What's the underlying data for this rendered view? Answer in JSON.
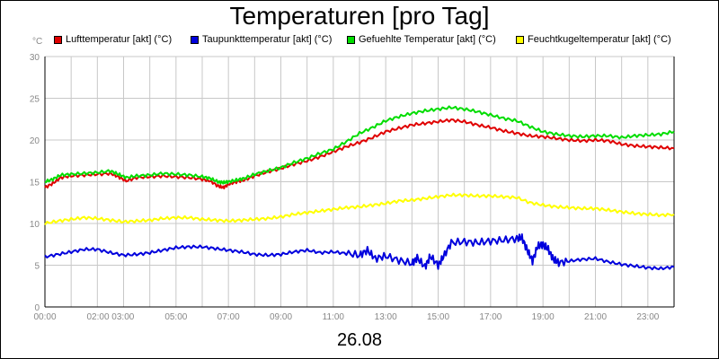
{
  "title": "Temperaturen [pro Tag]",
  "date_label": "26.08",
  "chart_data": {
    "type": "line",
    "title": "Temperaturen [pro Tag]",
    "xlabel": "26.08",
    "ylabel": "°C",
    "y_unit": "°C",
    "xlim": [
      0,
      24
    ],
    "ylim": [
      0,
      30
    ],
    "grid": true,
    "legend_position": "top",
    "x_ticks": [
      {
        "label": "00:00",
        "x": 0
      },
      {
        "label": "02:00 03:00",
        "x": 2.5
      },
      {
        "label": "05:00",
        "x": 5
      },
      {
        "label": "07:00",
        "x": 7
      },
      {
        "label": "09:00",
        "x": 9
      },
      {
        "label": "11:00",
        "x": 11
      },
      {
        "label": "13:00",
        "x": 13
      },
      {
        "label": "15:00",
        "x": 15
      },
      {
        "label": "17:00",
        "x": 17
      },
      {
        "label": "19:00",
        "x": 19
      },
      {
        "label": "21:00",
        "x": 21
      },
      {
        "label": "23:00",
        "x": 23
      }
    ],
    "y_ticks": [
      0,
      5,
      10,
      15,
      20,
      25,
      30
    ],
    "series": [
      {
        "name": "Lufttemperatur [akt] (°C)",
        "color": "#e00000",
        "points": [
          [
            0,
            14.3
          ],
          [
            0.3,
            14.8
          ],
          [
            0.6,
            15.5
          ],
          [
            1,
            15.7
          ],
          [
            1.5,
            15.8
          ],
          [
            2,
            15.9
          ],
          [
            2.5,
            16.0
          ],
          [
            2.8,
            15.6
          ],
          [
            3.1,
            15.1
          ],
          [
            3.5,
            15.5
          ],
          [
            4,
            15.6
          ],
          [
            4.5,
            15.7
          ],
          [
            5,
            15.6
          ],
          [
            5.5,
            15.5
          ],
          [
            6,
            15.3
          ],
          [
            6.3,
            15.1
          ],
          [
            6.6,
            14.5
          ],
          [
            6.8,
            14.3
          ],
          [
            7,
            14.7
          ],
          [
            7.3,
            15.0
          ],
          [
            7.6,
            15.2
          ],
          [
            8,
            15.7
          ],
          [
            8.5,
            16.2
          ],
          [
            9,
            16.6
          ],
          [
            9.5,
            17.1
          ],
          [
            10,
            17.5
          ],
          [
            10.5,
            18.0
          ],
          [
            11,
            18.6
          ],
          [
            11.5,
            19.2
          ],
          [
            12,
            19.7
          ],
          [
            12.5,
            20.3
          ],
          [
            13,
            21.0
          ],
          [
            13.5,
            21.4
          ],
          [
            14,
            21.8
          ],
          [
            14.5,
            22.0
          ],
          [
            15,
            22.2
          ],
          [
            15.5,
            22.4
          ],
          [
            16,
            22.2
          ],
          [
            16.5,
            21.8
          ],
          [
            17,
            21.5
          ],
          [
            17.5,
            21.1
          ],
          [
            18,
            20.8
          ],
          [
            18.5,
            20.5
          ],
          [
            19,
            20.4
          ],
          [
            19.5,
            20.2
          ],
          [
            20,
            20.0
          ],
          [
            20.5,
            19.9
          ],
          [
            21,
            20.0
          ],
          [
            21.5,
            19.9
          ],
          [
            22,
            19.5
          ],
          [
            22.5,
            19.3
          ],
          [
            23,
            19.2
          ],
          [
            23.5,
            19.1
          ],
          [
            24,
            19.0
          ]
        ]
      },
      {
        "name": "Taupunkttemperatur [akt] (°C)",
        "color": "#0000dd",
        "points": [
          [
            0,
            6.0
          ],
          [
            0.5,
            6.3
          ],
          [
            1,
            6.6
          ],
          [
            1.5,
            6.9
          ],
          [
            2,
            6.9
          ],
          [
            2.5,
            6.5
          ],
          [
            3,
            6.2
          ],
          [
            3.5,
            6.3
          ],
          [
            4,
            6.5
          ],
          [
            4.5,
            6.8
          ],
          [
            5,
            7.1
          ],
          [
            5.5,
            7.2
          ],
          [
            6,
            7.2
          ],
          [
            6.5,
            7.0
          ],
          [
            7,
            6.8
          ],
          [
            7.5,
            6.6
          ],
          [
            8,
            6.3
          ],
          [
            8.5,
            6.2
          ],
          [
            9,
            6.3
          ],
          [
            9.5,
            6.6
          ],
          [
            10,
            6.8
          ],
          [
            10.5,
            6.5
          ],
          [
            11,
            6.6
          ],
          [
            11.5,
            6.4
          ],
          [
            12,
            6.2
          ],
          [
            12.3,
            6.8
          ],
          [
            12.6,
            5.8
          ],
          [
            13,
            6.1
          ],
          [
            13.5,
            5.6
          ],
          [
            14,
            5.2
          ],
          [
            14.2,
            5.9
          ],
          [
            14.5,
            4.8
          ],
          [
            14.7,
            6.1
          ],
          [
            15,
            5.0
          ],
          [
            15.2,
            6.0
          ],
          [
            15.5,
            7.7
          ],
          [
            16,
            7.8
          ],
          [
            16.5,
            7.7
          ],
          [
            17,
            7.9
          ],
          [
            17.5,
            8.0
          ],
          [
            18,
            8.2
          ],
          [
            18.2,
            8.3
          ],
          [
            18.4,
            6.8
          ],
          [
            18.6,
            5.5
          ],
          [
            18.8,
            7.3
          ],
          [
            19,
            7.5
          ],
          [
            19.2,
            6.9
          ],
          [
            19.4,
            5.7
          ],
          [
            19.6,
            5.3
          ],
          [
            20,
            5.5
          ],
          [
            20.5,
            5.7
          ],
          [
            21,
            5.8
          ],
          [
            21.5,
            5.4
          ],
          [
            22,
            5.1
          ],
          [
            22.5,
            4.9
          ],
          [
            23,
            4.7
          ],
          [
            23.5,
            4.6
          ],
          [
            24,
            4.8
          ]
        ]
      },
      {
        "name": "Gefuehlte Temperatur [akt] (°C)",
        "color": "#00dd00",
        "points": [
          [
            0,
            15.0
          ],
          [
            0.3,
            15.3
          ],
          [
            0.6,
            15.8
          ],
          [
            1,
            15.9
          ],
          [
            1.5,
            16.0
          ],
          [
            2,
            16.1
          ],
          [
            2.5,
            16.3
          ],
          [
            2.8,
            15.9
          ],
          [
            3.1,
            15.5
          ],
          [
            3.5,
            15.7
          ],
          [
            4,
            15.8
          ],
          [
            4.5,
            16.0
          ],
          [
            5,
            15.9
          ],
          [
            5.5,
            15.8
          ],
          [
            6,
            15.6
          ],
          [
            6.3,
            15.4
          ],
          [
            6.6,
            15.0
          ],
          [
            6.8,
            14.9
          ],
          [
            7,
            15.0
          ],
          [
            7.3,
            15.2
          ],
          [
            7.6,
            15.4
          ],
          [
            8,
            15.9
          ],
          [
            8.5,
            16.3
          ],
          [
            9,
            16.7
          ],
          [
            9.5,
            17.3
          ],
          [
            10,
            17.8
          ],
          [
            10.5,
            18.4
          ],
          [
            11,
            18.9
          ],
          [
            11.5,
            19.8
          ],
          [
            12,
            20.8
          ],
          [
            12.5,
            21.5
          ],
          [
            13,
            22.3
          ],
          [
            13.5,
            22.8
          ],
          [
            14,
            23.2
          ],
          [
            14.5,
            23.5
          ],
          [
            15,
            23.7
          ],
          [
            15.5,
            23.9
          ],
          [
            16,
            23.7
          ],
          [
            16.5,
            23.4
          ],
          [
            17,
            23.0
          ],
          [
            17.5,
            22.6
          ],
          [
            18,
            22.3
          ],
          [
            18.5,
            21.6
          ],
          [
            19,
            21.0
          ],
          [
            19.5,
            20.7
          ],
          [
            20,
            20.5
          ],
          [
            20.5,
            20.4
          ],
          [
            21,
            20.5
          ],
          [
            21.5,
            20.5
          ],
          [
            22,
            20.3
          ],
          [
            22.5,
            20.5
          ],
          [
            23,
            20.6
          ],
          [
            23.5,
            20.7
          ],
          [
            24,
            21.0
          ]
        ]
      },
      {
        "name": "Feuchtkugeltemperatur [akt] (°C)",
        "color": "#ffff00",
        "points": [
          [
            0,
            10.0
          ],
          [
            0.5,
            10.3
          ],
          [
            1,
            10.5
          ],
          [
            1.5,
            10.7
          ],
          [
            2,
            10.6
          ],
          [
            2.5,
            10.4
          ],
          [
            3,
            10.2
          ],
          [
            3.5,
            10.3
          ],
          [
            4,
            10.4
          ],
          [
            4.5,
            10.6
          ],
          [
            5,
            10.7
          ],
          [
            5.5,
            10.7
          ],
          [
            6,
            10.5
          ],
          [
            6.5,
            10.4
          ],
          [
            7,
            10.3
          ],
          [
            7.5,
            10.4
          ],
          [
            8,
            10.5
          ],
          [
            8.5,
            10.6
          ],
          [
            9,
            10.8
          ],
          [
            9.5,
            11.1
          ],
          [
            10,
            11.3
          ],
          [
            10.5,
            11.5
          ],
          [
            11,
            11.7
          ],
          [
            11.5,
            11.9
          ],
          [
            12,
            12.0
          ],
          [
            12.5,
            12.2
          ],
          [
            13,
            12.4
          ],
          [
            13.5,
            12.7
          ],
          [
            14,
            12.8
          ],
          [
            14.5,
            13.0
          ],
          [
            15,
            13.2
          ],
          [
            15.5,
            13.4
          ],
          [
            16,
            13.4
          ],
          [
            16.5,
            13.3
          ],
          [
            17,
            13.3
          ],
          [
            17.5,
            13.2
          ],
          [
            18,
            13.1
          ],
          [
            18.5,
            12.5
          ],
          [
            19,
            12.2
          ],
          [
            19.5,
            12.0
          ],
          [
            20,
            11.9
          ],
          [
            20.5,
            11.8
          ],
          [
            21,
            11.8
          ],
          [
            21.5,
            11.6
          ],
          [
            22,
            11.4
          ],
          [
            22.5,
            11.2
          ],
          [
            23,
            11.1
          ],
          [
            23.5,
            11.0
          ],
          [
            24,
            11.1
          ]
        ]
      }
    ]
  }
}
